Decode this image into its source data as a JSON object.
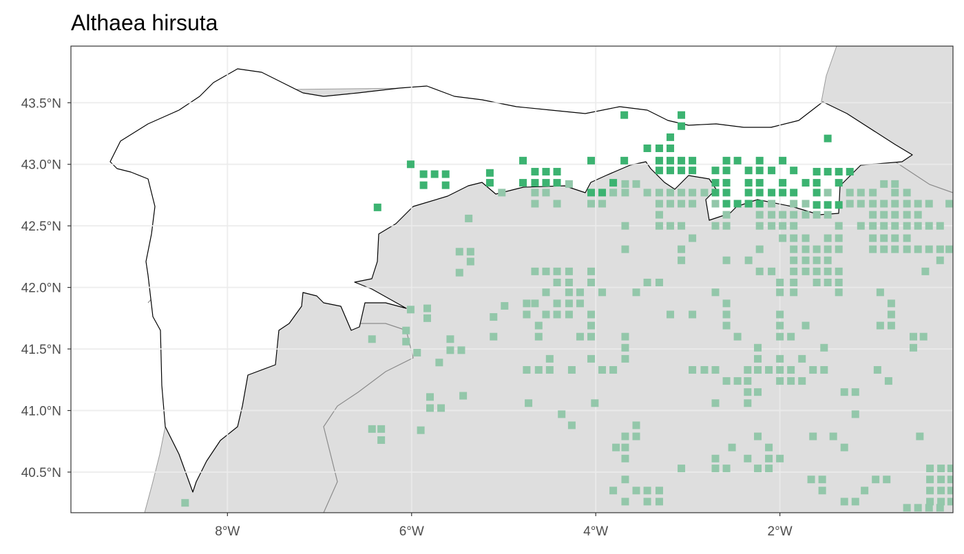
{
  "chart_data": {
    "type": "scatter",
    "title": "Althaea hirsuta",
    "xlim": [
      -9.7,
      -0.12
    ],
    "ylim": [
      40.17,
      43.96
    ],
    "grid": true,
    "xticks": [
      {
        "value": -8,
        "label": "8°W"
      },
      {
        "value": -6,
        "label": "6°W"
      },
      {
        "value": -4,
        "label": "4°W"
      },
      {
        "value": -2,
        "label": "2°W"
      }
    ],
    "yticks": [
      {
        "value": 40.5,
        "label": "40.5°N"
      },
      {
        "value": 41.0,
        "label": "41.0°N"
      },
      {
        "value": 41.5,
        "label": "41.5°N"
      },
      {
        "value": 42.0,
        "label": "42.0°N"
      },
      {
        "value": 42.5,
        "label": "42.5°N"
      },
      {
        "value": 43.0,
        "label": "43.0°N"
      },
      {
        "value": 43.5,
        "label": "43.5°N"
      }
    ],
    "series": [
      {
        "color": "#93c7aa",
        "x": [
          -4.29,
          -3.68,
          -3.56,
          -0.87,
          -0.75,
          -5.02,
          -4.66,
          -4.54,
          -3.81,
          -3.68,
          -3.44,
          -3.31,
          -3.19,
          -3.07,
          -2.95,
          -2.82,
          -1.48,
          -1.24,
          -1.12,
          -0.99,
          -0.75,
          -0.62,
          -4.66,
          -4.42,
          -4.05,
          -3.93,
          -3.31,
          -3.19,
          -3.07,
          -2.95,
          -2.7,
          -2.34,
          -2.09,
          -1.85,
          -1.72,
          -1.24,
          -1.12,
          -0.99,
          -0.87,
          -0.75,
          -0.62,
          -0.5,
          -0.38,
          -0.16,
          -3.31,
          -2.58,
          -2.22,
          -2.09,
          -1.97,
          -1.85,
          -1.72,
          -1.6,
          -1.48,
          -0.99,
          -0.87,
          -0.75,
          -0.62,
          -0.5,
          -5.38,
          -3.68,
          -3.31,
          -3.19,
          -3.07,
          -2.7,
          -2.58,
          -2.22,
          -2.09,
          -1.97,
          -1.85,
          -1.36,
          -1.12,
          -0.99,
          -0.87,
          -0.75,
          -0.62,
          -0.5,
          -0.38,
          -0.26,
          -2.95,
          -1.97,
          -1.85,
          -1.72,
          -1.48,
          -1.36,
          -0.99,
          -0.87,
          -0.75,
          -0.62,
          -3.68,
          -3.07,
          -2.22,
          -1.85,
          -1.72,
          -1.6,
          -1.48,
          -1.36,
          -0.99,
          -0.87,
          -0.75,
          -0.62,
          -0.5,
          -0.38,
          -0.26,
          -0.16,
          -5.48,
          -5.36,
          -3.07,
          -2.58,
          -2.34,
          -1.85,
          -1.72,
          -1.6,
          -1.48,
          -0.26,
          -5.36,
          -5.48,
          -4.66,
          -4.54,
          -4.42,
          -4.29,
          -4.05,
          -2.22,
          -2.09,
          -1.85,
          -1.72,
          -1.6,
          -1.48,
          -1.36,
          -0.42,
          -4.42,
          -4.29,
          -4.05,
          -3.44,
          -3.31,
          -2.0,
          -1.85,
          -1.6,
          -1.48,
          -1.36,
          -4.54,
          -4.29,
          -4.17,
          -3.93,
          -3.56,
          -2.7,
          -2.0,
          -1.85,
          -1.36,
          -0.91,
          -4.75,
          -4.66,
          -4.42,
          -4.29,
          -4.17,
          -2.58,
          -0.79,
          -4.99,
          -5.83,
          -6.01,
          -4.75,
          -4.54,
          -4.42,
          -4.29,
          -4.05,
          -3.19,
          -2.95,
          -2.58,
          -2.0,
          -0.79,
          -5.11,
          -5.83,
          -4.62,
          -4.05,
          -2.58,
          -2.0,
          -1.72,
          -0.91,
          -0.79,
          -6.06,
          -5.11,
          -4.62,
          -4.17,
          -4.05,
          -3.68,
          -2.46,
          -2.0,
          -1.88,
          -0.55,
          -0.44,
          -6.43,
          -5.58,
          -6.06,
          -3.68,
          -2.24,
          -1.52,
          -0.55,
          -5.58,
          -5.46,
          -5.94,
          -4.5,
          -4.05,
          -3.68,
          -2.24,
          -2.0,
          -1.76,
          -5.7,
          -4.75,
          -4.62,
          -4.5,
          -4.26,
          -3.93,
          -3.81,
          -2.95,
          -2.82,
          -2.7,
          -2.35,
          -2.24,
          -2.12,
          -2.0,
          -1.88,
          -1.64,
          -1.52,
          -0.94,
          -2.58,
          -2.46,
          -2.35,
          -2.0,
          -1.88,
          -1.76,
          -0.82,
          -2.35,
          -2.24,
          -1.3,
          -1.18,
          -5.44,
          -5.8,
          -4.73,
          -4.01,
          -2.7,
          -2.35,
          -5.8,
          -5.68,
          -4.37,
          -1.18,
          -4.26,
          -3.56,
          -6.43,
          -6.33,
          -5.9,
          -3.68,
          -3.56,
          -2.24,
          -1.64,
          -1.42,
          -0.48,
          -6.33,
          -3.78,
          -3.68,
          -2.52,
          -2.12,
          -1.3,
          -3.68,
          -2.7,
          -2.35,
          -2.12,
          -2.0,
          -3.07,
          -2.7,
          -2.58,
          -2.24,
          -2.12,
          -0.37,
          -0.25,
          -0.14,
          -3.68,
          -1.66,
          -1.54,
          -0.96,
          -0.84,
          -0.37,
          -0.25,
          -0.14,
          -3.81,
          -3.56,
          -3.44,
          -3.31,
          -1.54,
          -1.08,
          -0.37,
          -0.25,
          -0.14,
          -3.68,
          -3.44,
          -3.31,
          -1.3,
          -1.18,
          -0.37,
          -0.25,
          -0.14,
          -8.46,
          -0.62,
          -0.5,
          -0.38,
          -0.26
        ],
        "y": [
          42.84,
          42.84,
          42.84,
          42.84,
          42.84,
          42.77,
          42.77,
          42.77,
          42.77,
          42.77,
          42.77,
          42.77,
          42.77,
          42.77,
          42.77,
          42.77,
          42.77,
          42.77,
          42.77,
          42.77,
          42.77,
          42.77,
          42.68,
          42.68,
          42.68,
          42.68,
          42.68,
          42.68,
          42.68,
          42.68,
          42.68,
          42.68,
          42.68,
          42.68,
          42.68,
          42.68,
          42.68,
          42.68,
          42.68,
          42.68,
          42.68,
          42.68,
          42.68,
          42.68,
          42.59,
          42.59,
          42.59,
          42.59,
          42.59,
          42.59,
          42.59,
          42.59,
          42.59,
          42.59,
          42.59,
          42.59,
          42.59,
          42.59,
          42.56,
          42.5,
          42.5,
          42.5,
          42.5,
          42.5,
          42.5,
          42.5,
          42.5,
          42.5,
          42.5,
          42.5,
          42.5,
          42.5,
          42.5,
          42.5,
          42.5,
          42.5,
          42.5,
          42.5,
          42.4,
          42.4,
          42.4,
          42.4,
          42.4,
          42.4,
          42.4,
          42.4,
          42.4,
          42.4,
          42.31,
          42.31,
          42.31,
          42.31,
          42.31,
          42.31,
          42.31,
          42.31,
          42.31,
          42.31,
          42.31,
          42.31,
          42.31,
          42.31,
          42.31,
          42.31,
          42.29,
          42.29,
          42.22,
          42.22,
          42.22,
          42.22,
          42.22,
          42.22,
          42.22,
          42.22,
          42.21,
          42.12,
          42.13,
          42.13,
          42.13,
          42.13,
          42.13,
          42.13,
          42.13,
          42.13,
          42.13,
          42.13,
          42.13,
          42.13,
          42.13,
          42.04,
          42.04,
          42.04,
          42.04,
          42.04,
          42.04,
          42.04,
          42.04,
          42.04,
          42.04,
          41.96,
          41.96,
          41.96,
          41.96,
          41.96,
          41.96,
          41.96,
          41.96,
          41.96,
          41.96,
          41.87,
          41.87,
          41.87,
          41.87,
          41.87,
          41.87,
          41.87,
          41.85,
          41.83,
          41.82,
          41.78,
          41.78,
          41.78,
          41.78,
          41.78,
          41.78,
          41.78,
          41.78,
          41.78,
          41.78,
          41.76,
          41.75,
          41.69,
          41.69,
          41.69,
          41.69,
          41.69,
          41.69,
          41.69,
          41.65,
          41.6,
          41.6,
          41.6,
          41.6,
          41.6,
          41.6,
          41.6,
          41.6,
          41.6,
          41.6,
          41.58,
          41.58,
          41.56,
          41.51,
          41.51,
          41.51,
          41.51,
          41.49,
          41.49,
          41.47,
          41.42,
          41.42,
          41.42,
          41.42,
          41.42,
          41.42,
          41.39,
          41.33,
          41.33,
          41.33,
          41.33,
          41.33,
          41.33,
          41.33,
          41.33,
          41.33,
          41.33,
          41.33,
          41.33,
          41.33,
          41.33,
          41.33,
          41.33,
          41.33,
          41.24,
          41.24,
          41.24,
          41.24,
          41.24,
          41.24,
          41.24,
          41.15,
          41.15,
          41.15,
          41.15,
          41.12,
          41.11,
          41.06,
          41.06,
          41.06,
          41.06,
          41.02,
          41.02,
          40.97,
          40.97,
          40.88,
          40.88,
          40.85,
          40.85,
          40.84,
          40.79,
          40.79,
          40.79,
          40.79,
          40.79,
          40.79,
          40.76,
          40.7,
          40.7,
          40.7,
          40.7,
          40.7,
          40.61,
          40.61,
          40.61,
          40.61,
          40.61,
          40.53,
          40.53,
          40.53,
          40.53,
          40.53,
          40.53,
          40.53,
          40.53,
          40.44,
          40.44,
          40.44,
          40.44,
          40.44,
          40.44,
          40.44,
          40.44,
          40.35,
          40.35,
          40.35,
          40.35,
          40.35,
          40.35,
          40.35,
          40.35,
          40.35,
          40.26,
          40.26,
          40.26,
          40.26,
          40.26,
          40.26,
          40.26,
          40.26,
          40.25,
          40.21,
          40.21,
          40.21,
          40.21
        ]
      },
      {
        "color": "#3cb371",
        "x": [
          -3.69,
          -3.07,
          -3.07,
          -1.48,
          -3.19,
          -3.44,
          -3.31,
          -3.19,
          -6.01,
          -4.79,
          -4.05,
          -3.69,
          -3.31,
          -3.19,
          -3.07,
          -2.95,
          -2.58,
          -2.46,
          -2.22,
          -1.97,
          -5.87,
          -5.75,
          -5.63,
          -5.15,
          -4.66,
          -4.54,
          -4.42,
          -1.6,
          -1.48,
          -1.36,
          -1.24,
          -3.31,
          -3.19,
          -3.07,
          -2.95,
          -2.7,
          -2.58,
          -2.34,
          -2.22,
          -2.09,
          -1.85,
          -5.87,
          -5.63,
          -5.15,
          -4.79,
          -4.66,
          -4.54,
          -4.42,
          -3.81,
          -2.7,
          -2.58,
          -2.34,
          -2.22,
          -1.97,
          -1.72,
          -1.6,
          -1.36,
          -4.05,
          -3.93,
          -2.7,
          -2.58,
          -2.34,
          -2.22,
          -2.09,
          -1.97,
          -1.85,
          -1.6,
          -2.58,
          -2.46,
          -2.34,
          -2.22,
          -1.6,
          -1.48,
          -1.36,
          -6.37
        ],
        "y": [
          43.4,
          43.4,
          43.31,
          43.21,
          43.22,
          43.13,
          43.13,
          43.13,
          43.0,
          43.03,
          43.03,
          43.03,
          43.03,
          43.03,
          43.03,
          43.03,
          43.03,
          43.03,
          43.03,
          43.03,
          42.92,
          42.92,
          42.92,
          42.93,
          42.94,
          42.94,
          42.94,
          42.94,
          42.94,
          42.94,
          42.94,
          42.95,
          42.95,
          42.95,
          42.95,
          42.95,
          42.95,
          42.95,
          42.95,
          42.95,
          42.95,
          42.83,
          42.83,
          42.85,
          42.85,
          42.85,
          42.85,
          42.85,
          42.85,
          42.85,
          42.85,
          42.85,
          42.85,
          42.85,
          42.85,
          42.85,
          42.85,
          42.77,
          42.77,
          42.77,
          42.77,
          42.77,
          42.77,
          42.77,
          42.77,
          42.77,
          42.77,
          42.68,
          42.68,
          42.68,
          42.68,
          42.67,
          42.67,
          42.67,
          42.65
        ]
      }
    ]
  }
}
